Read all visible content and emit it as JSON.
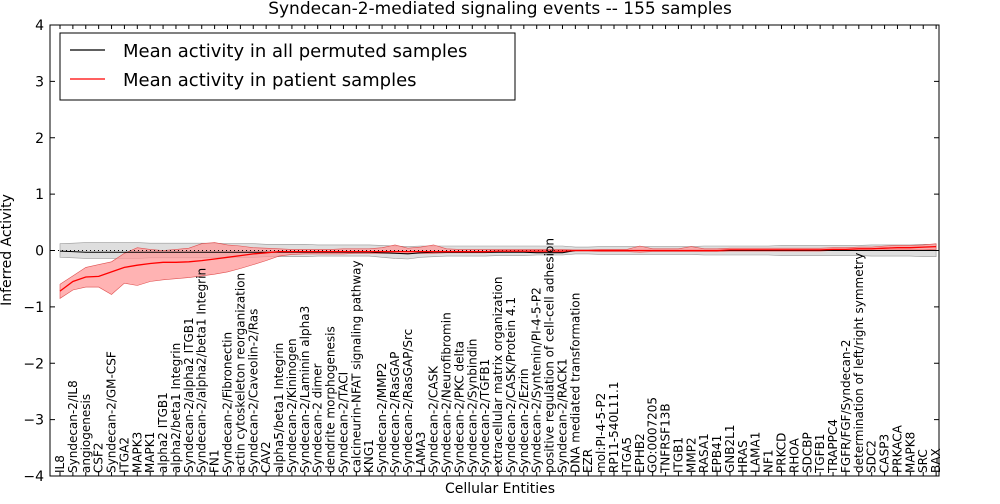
{
  "chart_data": {
    "type": "line",
    "title": "Syndecan-2-mediated signaling events -- 155 samples",
    "xlabel": "Cellular Entities",
    "ylabel": "Inferred Activity",
    "ylim": [
      -4,
      4
    ],
    "yticks": [
      -4,
      -3,
      -2,
      -1,
      0,
      1,
      2,
      3,
      4
    ],
    "yticklabels": [
      "−4",
      "−3",
      "−2",
      "−1",
      "0",
      "1",
      "2",
      "3",
      "4"
    ],
    "legend_position": "top-left",
    "colors": {
      "permuted": "#000000",
      "patient": "#ff0000",
      "patient_band": "#ff9999",
      "permuted_band": "#c8c8c8"
    },
    "categories": [
      "IL8",
      "Syndecan-2/IL8",
      "angiogenesis",
      "CSF2",
      "Syndecan-2/GM-CSF",
      "ITGA2",
      "MAPK3",
      "MAPK1",
      "alpha2 ITGB1",
      "alpha2/beta1 Integrin",
      "Syndecan-2/alpha2 ITGB1",
      "Syndecan-2/alpha2/beta1 Integrin",
      "FN1",
      "Syndecan-2/Fibronectin",
      "actin cytoskeleton reorganization",
      "Syndecan-2/Caveolin-2/Ras",
      "CAV2",
      "alpha5/beta1 Integrin",
      "Syndecan-2/Kininogen",
      "Syndecan-2/Laminin alpha3",
      "Syndecan-2 dimer",
      "dendrite morphogenesis",
      "Syndecan-2/TACI",
      "calcineurin-NFAT signaling pathway",
      "KNG1",
      "Syndecan-2/MMP2",
      "Syndecan-2/RasGAP",
      "Syndecan-2/RasGAP/Src",
      "LAMA3",
      "Syndecan-2/CASK",
      "Syndecan-2/Neurofibromin",
      "Syndecan-2/PKC delta",
      "Syndecan-2/Synbindin",
      "Syndecan-2/TGFB1",
      "extracellular matrix organization",
      "Syndecan-2/CASK/Protein 4.1",
      "Syndecan-2/Ezrin",
      "Syndecan-2/Syntenin/PI-4-5-P2",
      "positive regulation of cell-cell adhesion",
      "Syndecan-2/RACK1",
      "DNA mediated transformation",
      "EZR",
      "mol:PI-4-5-P2",
      "RP11-540L11.1",
      "ITGA5",
      "EPHB2",
      "GO:0007205",
      "TNFRSF13B",
      "ITGB1",
      "MMP2",
      "RASA1",
      "EPB41",
      "GNB2L1",
      "HRAS",
      "LAMA1",
      "NF1",
      "PRKCD",
      "RHOA",
      "SDCBP",
      "TGFB1",
      "TRAPPC4",
      "FGFR/FGF/Syndecan-2",
      "determination of left/right symmetry",
      "SDC2",
      "CASP3",
      "PRKACA",
      "MAPK8",
      "SRC",
      "BAX"
    ],
    "series": [
      {
        "name": "Mean activity in all permuted samples",
        "values": [
          -0.01,
          -0.02,
          -0.03,
          -0.03,
          -0.03,
          -0.03,
          -0.03,
          -0.03,
          -0.03,
          -0.03,
          -0.03,
          -0.03,
          -0.03,
          -0.03,
          -0.03,
          -0.03,
          -0.03,
          -0.03,
          -0.03,
          -0.03,
          -0.03,
          -0.03,
          -0.03,
          -0.03,
          -0.03,
          -0.04,
          -0.05,
          -0.06,
          -0.04,
          -0.03,
          -0.03,
          -0.03,
          -0.03,
          -0.03,
          -0.03,
          -0.03,
          -0.03,
          -0.04,
          -0.04,
          -0.04,
          0.0,
          0.0,
          0.0,
          0.0,
          0.0,
          0.0,
          0.0,
          0.0,
          0.0,
          0.0,
          0.0,
          0.0,
          0.0,
          0.0,
          0.0,
          0.0,
          0.0,
          0.0,
          0.0,
          0.0,
          0.0,
          0.0,
          0.0,
          0.0,
          0.0,
          0.0,
          0.0,
          0.0,
          0.0
        ],
        "lower": [
          -0.12,
          -0.13,
          -0.14,
          -0.14,
          -0.14,
          -0.14,
          -0.14,
          -0.13,
          -0.13,
          -0.13,
          -0.13,
          -0.13,
          -0.13,
          -0.12,
          -0.12,
          -0.12,
          -0.11,
          -0.11,
          -0.11,
          -0.11,
          -0.1,
          -0.1,
          -0.1,
          -0.1,
          -0.1,
          -0.12,
          -0.14,
          -0.15,
          -0.12,
          -0.11,
          -0.1,
          -0.1,
          -0.1,
          -0.1,
          -0.09,
          -0.09,
          -0.09,
          -0.08,
          -0.08,
          -0.08,
          -0.06,
          -0.06,
          -0.07,
          -0.07,
          -0.07,
          -0.07,
          -0.07,
          -0.07,
          -0.07,
          -0.07,
          -0.08,
          -0.08,
          -0.08,
          -0.08,
          -0.08,
          -0.08,
          -0.09,
          -0.09,
          -0.09,
          -0.09,
          -0.09,
          -0.09,
          -0.09,
          -0.1,
          -0.1,
          -0.1,
          -0.1,
          -0.11,
          -0.11
        ],
        "upper": [
          0.12,
          0.13,
          0.14,
          0.14,
          0.14,
          0.14,
          0.14,
          0.13,
          0.13,
          0.13,
          0.13,
          0.13,
          0.13,
          0.12,
          0.12,
          0.12,
          0.11,
          0.11,
          0.11,
          0.11,
          0.1,
          0.1,
          0.1,
          0.1,
          0.1,
          0.09,
          0.08,
          0.07,
          0.08,
          0.08,
          0.08,
          0.08,
          0.08,
          0.08,
          0.08,
          0.08,
          0.08,
          0.08,
          0.08,
          0.08,
          0.06,
          0.06,
          0.07,
          0.07,
          0.07,
          0.07,
          0.07,
          0.07,
          0.07,
          0.07,
          0.08,
          0.08,
          0.08,
          0.08,
          0.08,
          0.08,
          0.09,
          0.09,
          0.09,
          0.09,
          0.09,
          0.09,
          0.09,
          0.1,
          0.1,
          0.1,
          0.1,
          0.11,
          0.11
        ]
      },
      {
        "name": "Mean activity in patient samples",
        "values": [
          -0.72,
          -0.55,
          -0.47,
          -0.46,
          -0.38,
          -0.3,
          -0.26,
          -0.23,
          -0.21,
          -0.21,
          -0.2,
          -0.18,
          -0.15,
          -0.12,
          -0.09,
          -0.06,
          -0.04,
          -0.02,
          -0.02,
          -0.02,
          -0.02,
          -0.02,
          -0.02,
          -0.02,
          -0.02,
          -0.02,
          -0.02,
          -0.02,
          -0.02,
          -0.02,
          -0.02,
          -0.02,
          -0.02,
          -0.02,
          -0.01,
          -0.01,
          -0.01,
          -0.01,
          -0.01,
          -0.01,
          0.0,
          0.0,
          0.0,
          0.0,
          0.0,
          0.0,
          0.0,
          0.0,
          0.0,
          0.0,
          0.0,
          0.0,
          0.01,
          0.01,
          0.01,
          0.01,
          0.01,
          0.01,
          0.01,
          0.01,
          0.02,
          0.02,
          0.03,
          0.03,
          0.04,
          0.05,
          0.05,
          0.06,
          0.07
        ],
        "lower": [
          -0.85,
          -0.7,
          -0.65,
          -0.65,
          -0.78,
          -0.58,
          -0.62,
          -0.55,
          -0.52,
          -0.5,
          -0.48,
          -0.45,
          -0.42,
          -0.38,
          -0.32,
          -0.25,
          -0.18,
          -0.1,
          -0.07,
          -0.06,
          -0.06,
          -0.06,
          -0.06,
          -0.05,
          -0.05,
          -0.05,
          -0.05,
          -0.05,
          -0.05,
          -0.05,
          -0.04,
          -0.04,
          -0.04,
          -0.04,
          -0.03,
          -0.03,
          -0.03,
          -0.03,
          -0.03,
          -0.03,
          -0.01,
          -0.01,
          -0.02,
          -0.02,
          -0.02,
          -0.03,
          -0.02,
          -0.02,
          -0.02,
          -0.02,
          -0.02,
          -0.02,
          -0.01,
          -0.01,
          -0.01,
          -0.01,
          -0.01,
          -0.01,
          -0.01,
          -0.01,
          0.0,
          0.0,
          0.0,
          0.0,
          0.01,
          0.01,
          0.01,
          0.01,
          0.02
        ],
        "upper": [
          -0.6,
          -0.45,
          -0.3,
          -0.25,
          -0.2,
          -0.05,
          0.05,
          0.02,
          0.0,
          0.02,
          0.04,
          0.12,
          0.14,
          0.1,
          0.08,
          0.05,
          0.04,
          0.03,
          0.02,
          0.02,
          0.02,
          0.02,
          0.03,
          0.03,
          0.03,
          0.05,
          0.1,
          0.04,
          0.06,
          0.1,
          0.03,
          0.02,
          0.02,
          0.02,
          0.02,
          0.02,
          0.02,
          0.02,
          0.02,
          0.02,
          0.01,
          0.01,
          0.02,
          0.02,
          0.02,
          0.08,
          0.03,
          0.03,
          0.03,
          0.07,
          0.03,
          0.03,
          0.04,
          0.04,
          0.04,
          0.04,
          0.04,
          0.04,
          0.04,
          0.04,
          0.05,
          0.05,
          0.06,
          0.06,
          0.08,
          0.09,
          0.09,
          0.1,
          0.12
        ]
      }
    ]
  }
}
